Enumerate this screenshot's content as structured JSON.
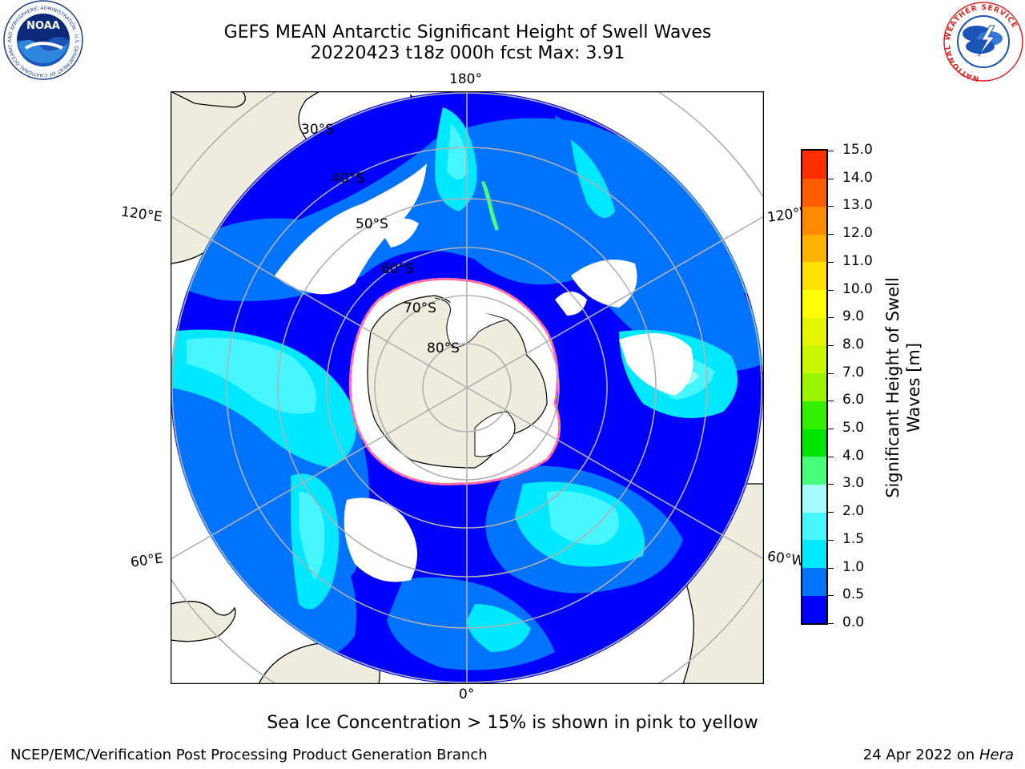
{
  "title": {
    "line1": "GEFS MEAN Antarctic Significant Height of Swell Waves",
    "line2": "20220423 t18z 000h fcst   Max: 3.91"
  },
  "logos": {
    "left": "noaa-logo",
    "right": "national-weather-service-logo",
    "noaa_text": "NOAA",
    "noaa_ring_text": "NATIONAL OCEANIC AND ATMOSPHERIC ADMINISTRATION · U.S. DEPARTMENT OF COMMERCE",
    "nws_ring_text": "NATIONAL WEATHER SERVICE"
  },
  "map": {
    "projection": "south-polar-stereographic",
    "longitude_labels": {
      "top": "180°",
      "left_upper": "120°E",
      "right_upper": "120°W",
      "left_lower": "60°E",
      "right_lower": "60°W",
      "bottom": "0°"
    },
    "latitude_labels": [
      "30°S",
      "40°S",
      "50°S",
      "60°S",
      "70°S",
      "80°S"
    ],
    "colors": {
      "land": "#eeecdd",
      "coastline": "#000000",
      "gridline": "#b0b0b0",
      "ice_free_outside": "#ffffff"
    }
  },
  "colorbar": {
    "label_line1": "Significant Height of Swell",
    "label_line2": "Waves [m]",
    "ticks": [
      "0.0",
      "0.5",
      "1.0",
      "1.5",
      "2.0",
      "3.0",
      "4.0",
      "5.0",
      "6.0",
      "7.0",
      "8.0",
      "9.0",
      "10.0",
      "11.0",
      "12.0",
      "13.0",
      "14.0",
      "15.0"
    ],
    "colors": [
      "#0000ff",
      "#0073ff",
      "#00e8ff",
      "#47f5ff",
      "#a3fbff",
      "#47ff7a",
      "#00e600",
      "#33ef00",
      "#99f500",
      "#ccf500",
      "#e6f500",
      "#ffff00",
      "#ffe000",
      "#ffb300",
      "#ff8a00",
      "#ff5c00",
      "#ff2e00"
    ]
  },
  "caption": "Sea Ice Concentration > 15% is shown in pink to yellow",
  "footer": {
    "left": "NCEP/EMC/Verification Post Processing Product Generation Branch",
    "right_date": "24 Apr 2022 on ",
    "right_host": "Hera"
  }
}
